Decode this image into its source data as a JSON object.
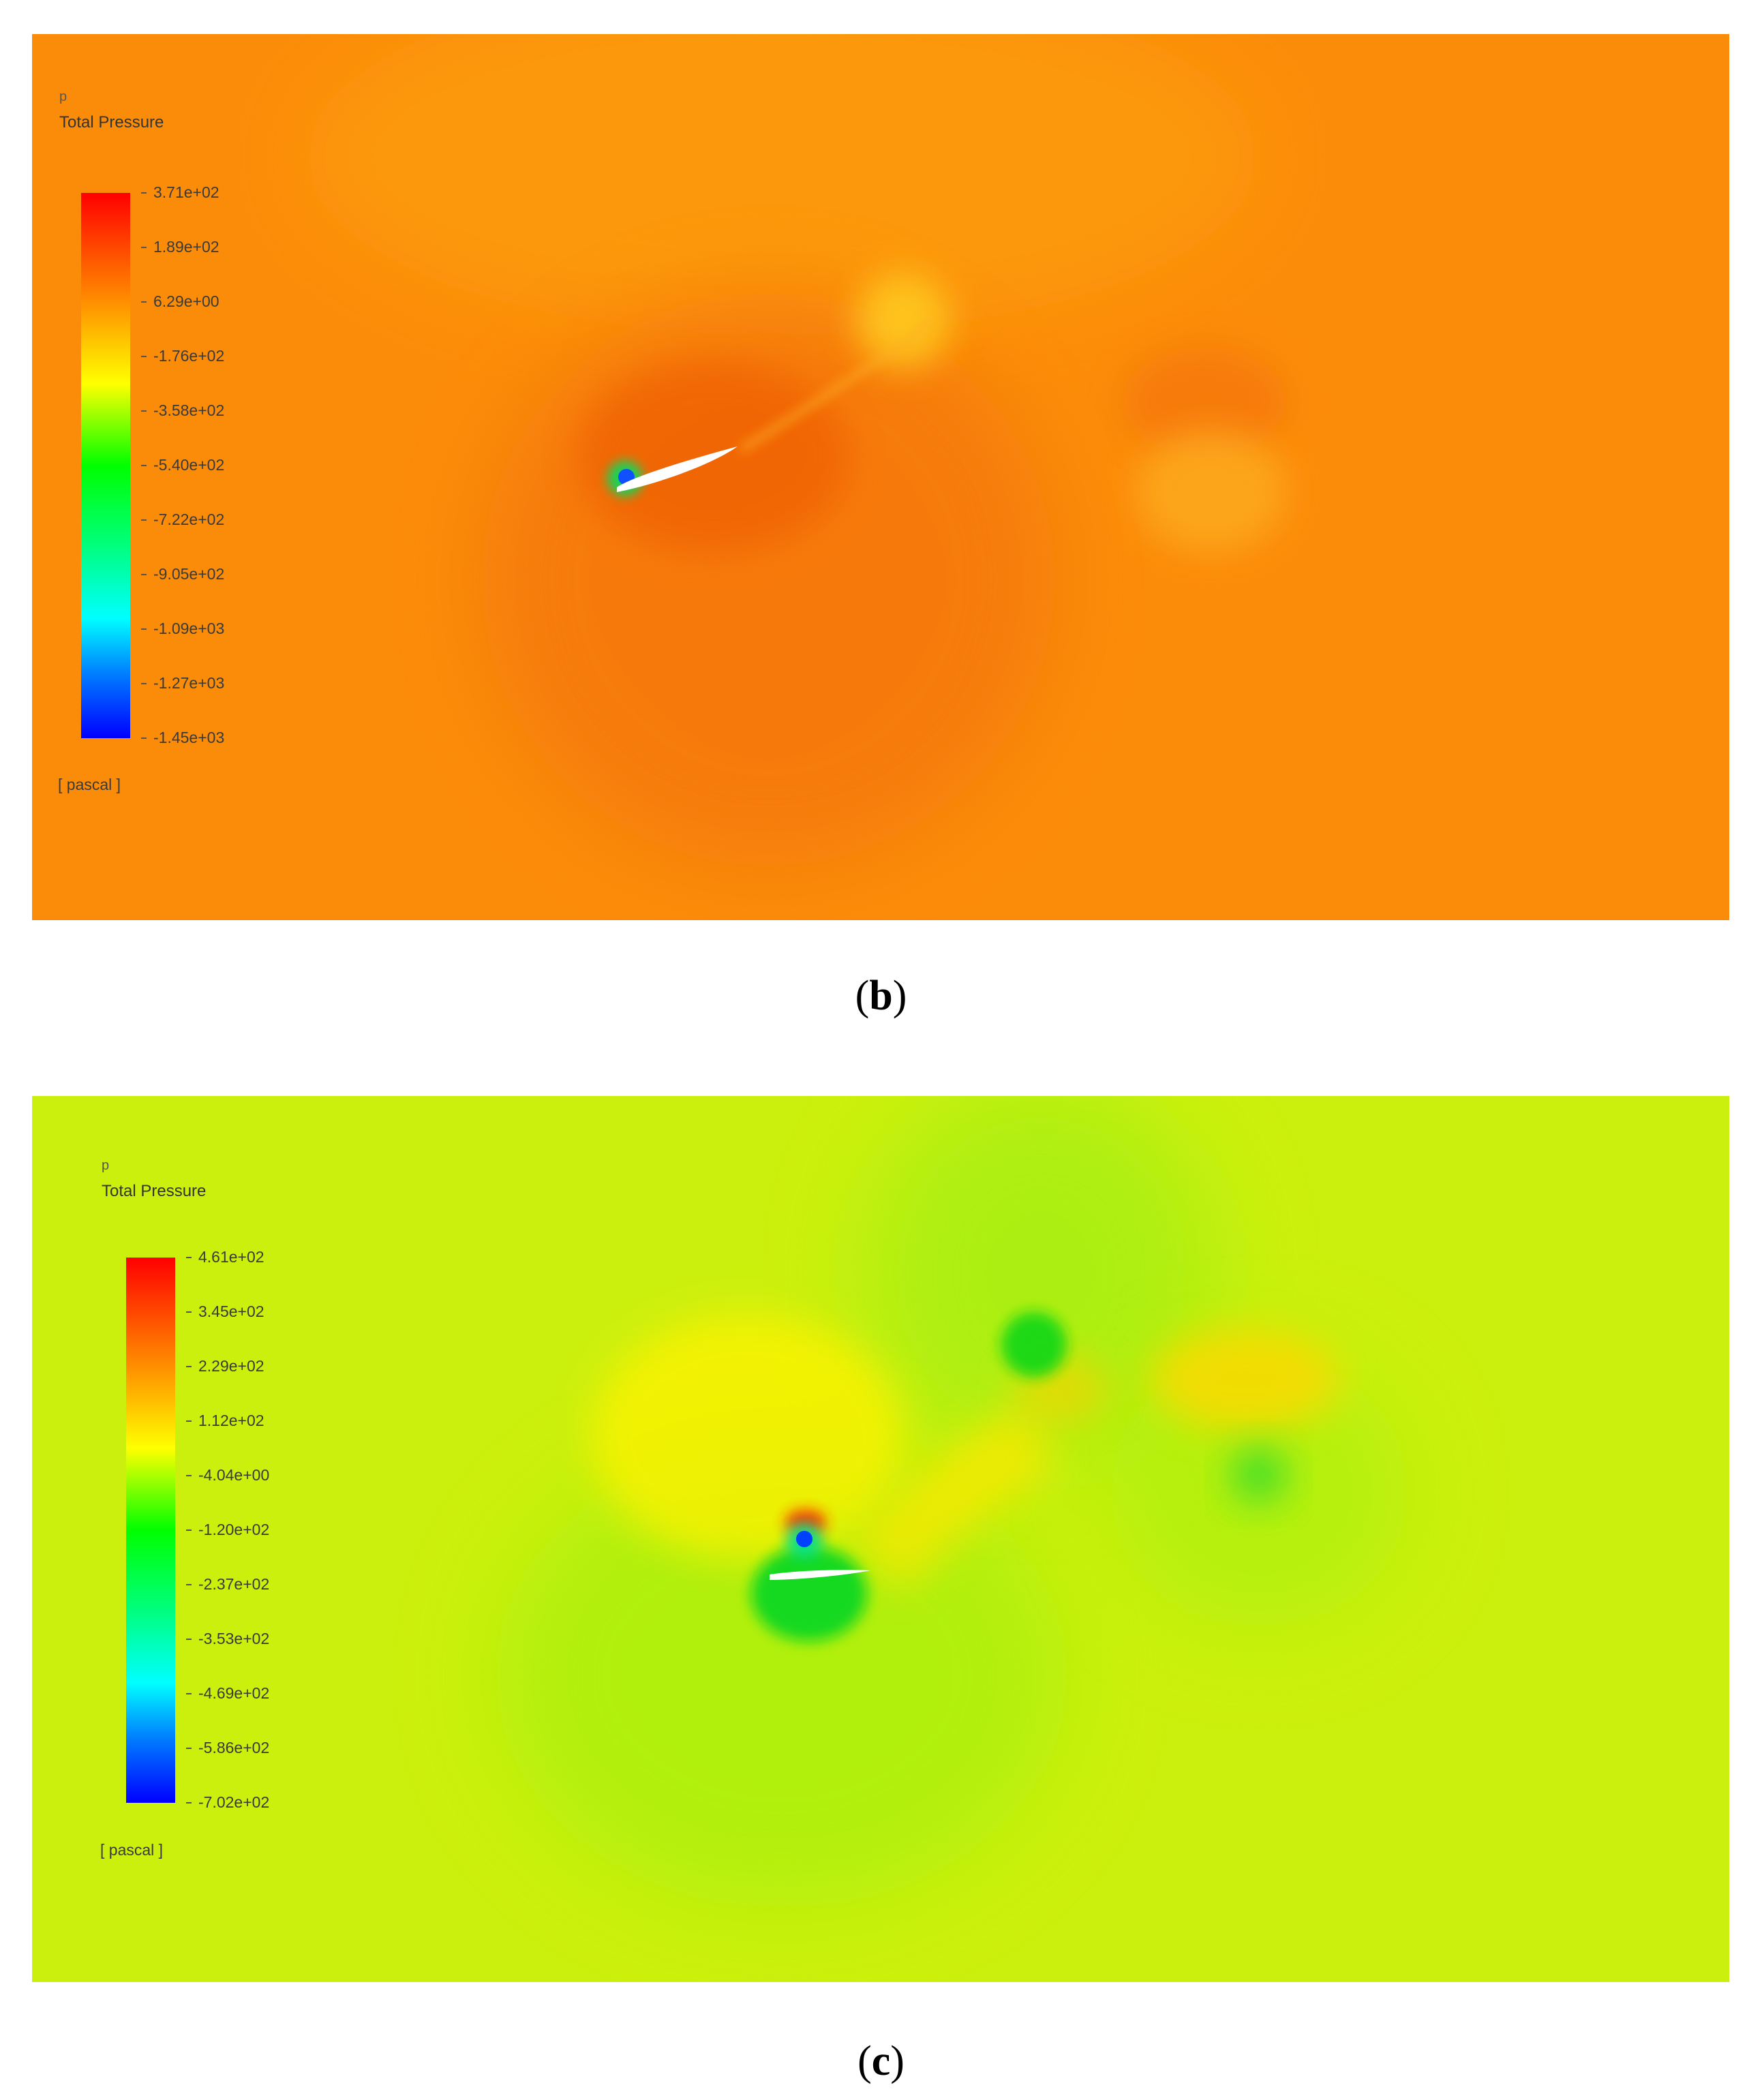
{
  "panels": [
    {
      "caption_letter": "b",
      "legend": {
        "variable": "p",
        "title": "Total Pressure",
        "ticks": [
          "3.71e+02",
          "1.89e+02",
          "6.29e+00",
          "-1.76e+02",
          "-3.58e+02",
          "-5.40e+02",
          "-7.22e+02",
          "-9.05e+02",
          "-1.09e+03",
          "-1.27e+03",
          "-1.45e+03"
        ],
        "unit": "[ pascal ]"
      },
      "colors": {
        "background": "#fb8c0a"
      }
    },
    {
      "caption_letter": "c",
      "legend": {
        "variable": "p",
        "title": "Total Pressure",
        "ticks": [
          "4.61e+02",
          "3.45e+02",
          "2.29e+02",
          "1.12e+02",
          "-4.04e+00",
          "-1.20e+02",
          "-2.37e+02",
          "-3.53e+02",
          "-4.69e+02",
          "-5.86e+02",
          "-7.02e+02"
        ],
        "unit": "[ pascal ]"
      },
      "colors": {
        "background": "#ccf00d"
      }
    }
  ]
}
